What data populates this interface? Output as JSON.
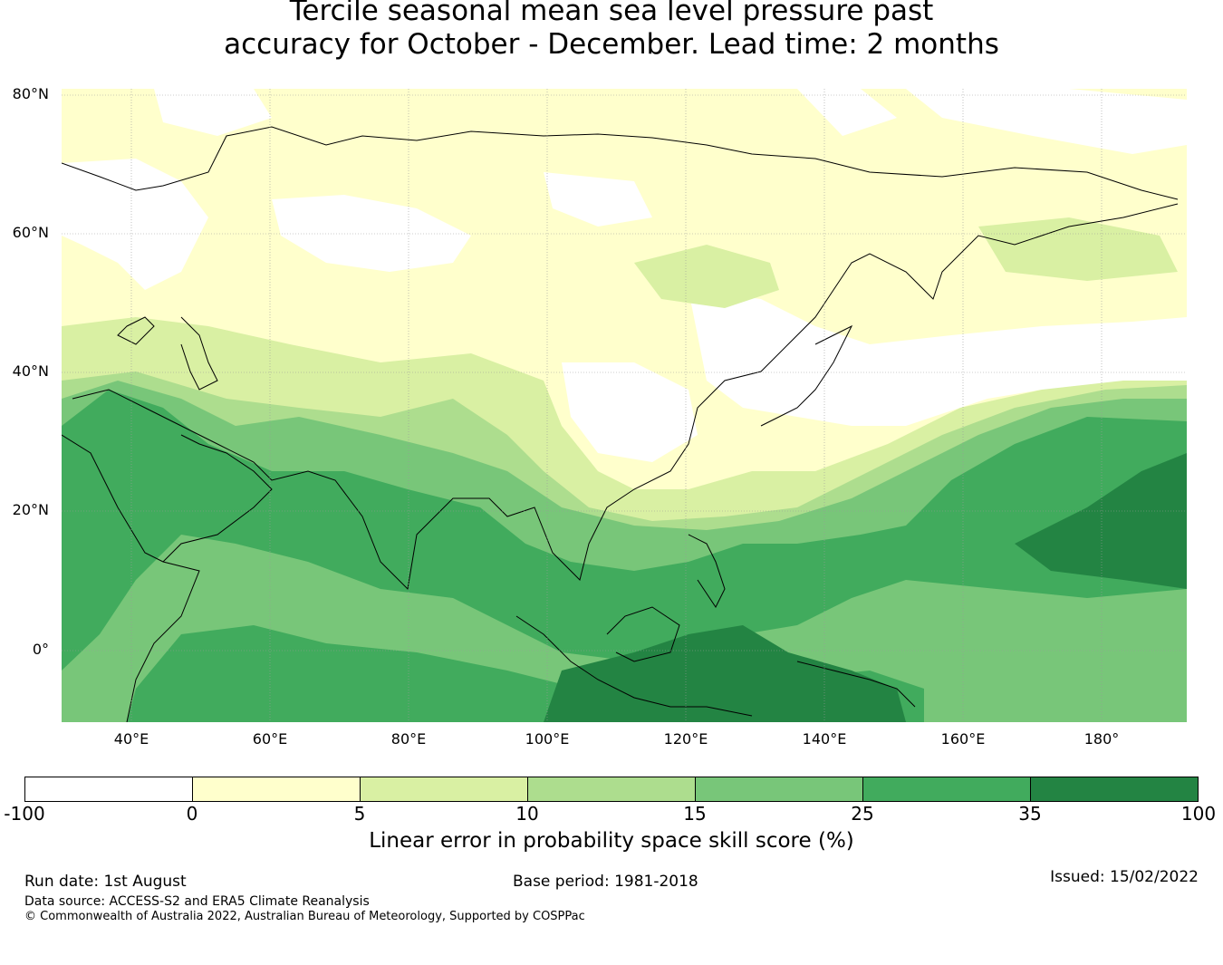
{
  "title": {
    "line1": "Tercile seasonal mean sea level pressure past",
    "line2": "accuracy for October - December. Lead time: 2 months"
  },
  "map": {
    "lat_labels": [
      "80°N",
      "60°N",
      "40°N",
      "20°N",
      "0°"
    ],
    "lon_labels": [
      "40°E",
      "60°E",
      "80°E",
      "100°E",
      "120°E",
      "140°E",
      "160°E",
      "180°"
    ],
    "extent": {
      "lon": [
        30,
        192
      ],
      "lat": [
        -10,
        81
      ]
    },
    "gridlines": true
  },
  "colorbar": {
    "ticks": [
      "-100",
      "0",
      "5",
      "10",
      "15",
      "25",
      "35",
      "100"
    ],
    "colors": [
      "#ffffff",
      "#ffffcc",
      "#d9f0a3",
      "#addd8e",
      "#78c679",
      "#41ab5d",
      "#238443"
    ],
    "label": "Linear error in probability space skill score (%)"
  },
  "footer": {
    "run_date": "Run date: 1st August",
    "base_period": "Base period: 1981-2018",
    "issued": "Issued: 15/02/2022",
    "data_source": "Data source: ACCESS-S2 and ERA5 Climate Reanalysis",
    "copyright": "© Commonwealth of Australia 2022, Australian Bureau of Meteorology, Supported by COSPPac"
  }
}
